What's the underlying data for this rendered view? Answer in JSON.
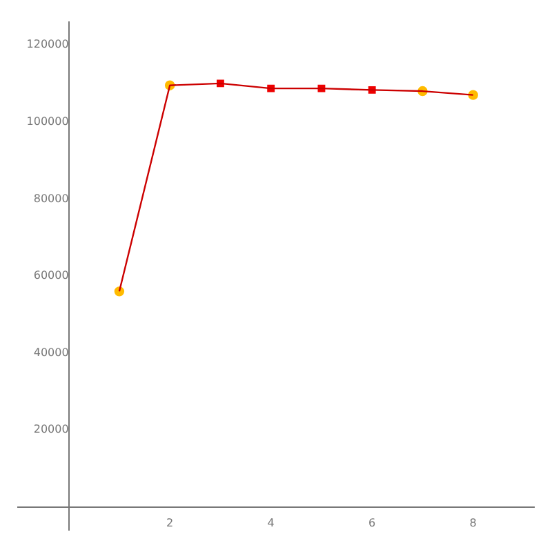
{
  "chart_data": {
    "type": "line",
    "x": [
      1,
      2,
      3,
      4,
      5,
      6,
      7,
      8
    ],
    "series": [
      {
        "color": "#cc0000",
        "marker": "none",
        "values": [
          56000,
          109500,
          110000,
          108700,
          108700,
          108300,
          108000,
          107000
        ]
      },
      {
        "type": "scatter",
        "color": "#ffbb00",
        "marker": "circle",
        "x": [
          1,
          2,
          7,
          8
        ],
        "values": [
          56000,
          109500,
          108000,
          107000
        ]
      },
      {
        "type": "scatter",
        "color": "#ee0000",
        "marker": "square",
        "x": [
          3,
          4,
          5,
          6
        ],
        "values": [
          110000,
          108700,
          108700,
          108300
        ]
      }
    ],
    "xlim": [
      -1,
      9.2
    ],
    "ylim": [
      -6000,
      126000
    ],
    "xticks": [
      2,
      4,
      6,
      8
    ],
    "yticks": [
      20000,
      40000,
      60000,
      80000,
      100000,
      120000
    ],
    "grid": false,
    "legend": false
  }
}
